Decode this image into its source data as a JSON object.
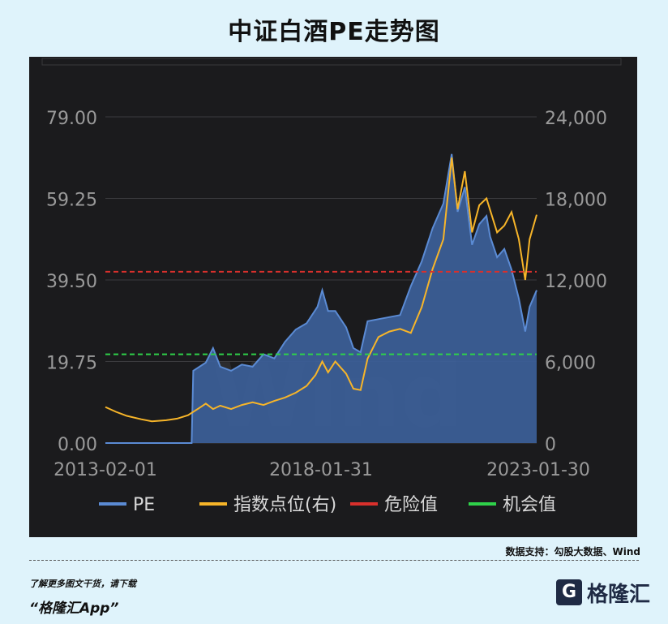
{
  "page": {
    "title": "中证白酒PE走势图",
    "source": "数据支持：勾股大数据、Wind",
    "footer_note": "了解更多图文干货，请下载",
    "footer_app": "“格隆汇App”",
    "logo_text": "格隆汇"
  },
  "colors": {
    "pe": "#5b8bd4",
    "pe_fill": "#3c5f99",
    "index": "#f7b529",
    "danger": "#d9302c",
    "opportunity": "#2fd24a",
    "panel_bg": "#1b1b1d",
    "axis_text": "#9a9a9a"
  },
  "chart_data": {
    "type": "area",
    "x_ticks": [
      "2013-02-01",
      "2018-01-31",
      "2023-01-30"
    ],
    "y_left": {
      "ticks": [
        "0.00",
        "19.75",
        "39.50",
        "59.25",
        "79.00"
      ],
      "range": [
        0,
        79
      ]
    },
    "y_right": {
      "ticks": [
        "0",
        "6,000",
        "12,000",
        "18,000",
        "24,000"
      ],
      "range": [
        0,
        24000
      ]
    },
    "grid": true,
    "legend_position": "bottom",
    "legend": [
      {
        "label": "PE",
        "color": "#5b8bd4"
      },
      {
        "label": "指数点位(右)",
        "color": "#f7b529"
      },
      {
        "label": "危险值",
        "color": "#d9302c"
      },
      {
        "label": "机会值",
        "color": "#2fd24a"
      }
    ],
    "watermark": "Wind",
    "danger_value": 41.5,
    "opportunity_value": 21.5,
    "pe_series": {
      "name": "PE",
      "points": [
        [
          "2013-02-01",
          0
        ],
        [
          "2014-03-10",
          0
        ],
        [
          "2015-02-01",
          0
        ],
        [
          "2015-02-15",
          17.5
        ],
        [
          "2015-06-01",
          19.5
        ],
        [
          "2015-08-01",
          23
        ],
        [
          "2015-10-01",
          18.5
        ],
        [
          "2016-01-01",
          17.5
        ],
        [
          "2016-04-01",
          19
        ],
        [
          "2016-07-01",
          18.5
        ],
        [
          "2016-10-01",
          21.5
        ],
        [
          "2017-01-01",
          20.5
        ],
        [
          "2017-04-01",
          24.5
        ],
        [
          "2017-07-01",
          27.5
        ],
        [
          "2017-10-01",
          29
        ],
        [
          "2018-01-01",
          33
        ],
        [
          "2018-02-10",
          37
        ],
        [
          "2018-04-01",
          32
        ],
        [
          "2018-06-01",
          32
        ],
        [
          "2018-09-01",
          28
        ],
        [
          "2018-11-01",
          23
        ],
        [
          "2019-01-01",
          22
        ],
        [
          "2019-03-01",
          29.5
        ],
        [
          "2019-06-01",
          30
        ],
        [
          "2019-09-01",
          30.5
        ],
        [
          "2019-12-01",
          31
        ],
        [
          "2020-03-01",
          38
        ],
        [
          "2020-06-01",
          44
        ],
        [
          "2020-09-01",
          52
        ],
        [
          "2020-12-01",
          58
        ],
        [
          "2021-02-10",
          70
        ],
        [
          "2021-04-01",
          56
        ],
        [
          "2021-06-01",
          62
        ],
        [
          "2021-08-01",
          48
        ],
        [
          "2021-10-01",
          53
        ],
        [
          "2021-12-01",
          55
        ],
        [
          "2022-01-01",
          50
        ],
        [
          "2022-03-01",
          45
        ],
        [
          "2022-05-01",
          47
        ],
        [
          "2022-07-01",
          42
        ],
        [
          "2022-09-01",
          35
        ],
        [
          "2022-10-25",
          27
        ],
        [
          "2022-12-01",
          33
        ],
        [
          "2023-01-30",
          37
        ]
      ]
    },
    "index_series": {
      "name": "指数点位(右)",
      "points": [
        [
          "2013-02-01",
          2650
        ],
        [
          "2013-05-01",
          2300
        ],
        [
          "2013-08-01",
          2000
        ],
        [
          "2013-12-01",
          1750
        ],
        [
          "2014-03-01",
          1600
        ],
        [
          "2014-07-01",
          1680
        ],
        [
          "2014-10-01",
          1800
        ],
        [
          "2015-01-01",
          2050
        ],
        [
          "2015-04-01",
          2550
        ],
        [
          "2015-06-01",
          2900
        ],
        [
          "2015-08-01",
          2500
        ],
        [
          "2015-10-01",
          2750
        ],
        [
          "2016-01-01",
          2500
        ],
        [
          "2016-04-01",
          2800
        ],
        [
          "2016-07-01",
          3000
        ],
        [
          "2016-10-01",
          2800
        ],
        [
          "2017-01-01",
          3100
        ],
        [
          "2017-04-01",
          3350
        ],
        [
          "2017-07-01",
          3700
        ],
        [
          "2017-10-01",
          4200
        ],
        [
          "2017-12-15",
          5000
        ],
        [
          "2018-02-10",
          6000
        ],
        [
          "2018-04-01",
          5200
        ],
        [
          "2018-06-01",
          6000
        ],
        [
          "2018-09-01",
          5100
        ],
        [
          "2018-11-01",
          4000
        ],
        [
          "2019-01-01",
          3900
        ],
        [
          "2019-03-01",
          6200
        ],
        [
          "2019-06-01",
          7800
        ],
        [
          "2019-09-01",
          8200
        ],
        [
          "2019-12-01",
          8400
        ],
        [
          "2020-03-01",
          8100
        ],
        [
          "2020-06-01",
          10000
        ],
        [
          "2020-09-01",
          12800
        ],
        [
          "2020-12-01",
          15000
        ],
        [
          "2021-02-10",
          21000
        ],
        [
          "2021-04-01",
          17200
        ],
        [
          "2021-06-01",
          20000
        ],
        [
          "2021-08-01",
          15500
        ],
        [
          "2021-10-01",
          17500
        ],
        [
          "2021-12-01",
          18000
        ],
        [
          "2022-03-01",
          15500
        ],
        [
          "2022-05-01",
          16000
        ],
        [
          "2022-07-01",
          17000
        ],
        [
          "2022-09-01",
          15000
        ],
        [
          "2022-10-25",
          12000
        ],
        [
          "2022-12-01",
          15000
        ],
        [
          "2023-01-30",
          16800
        ]
      ]
    }
  }
}
